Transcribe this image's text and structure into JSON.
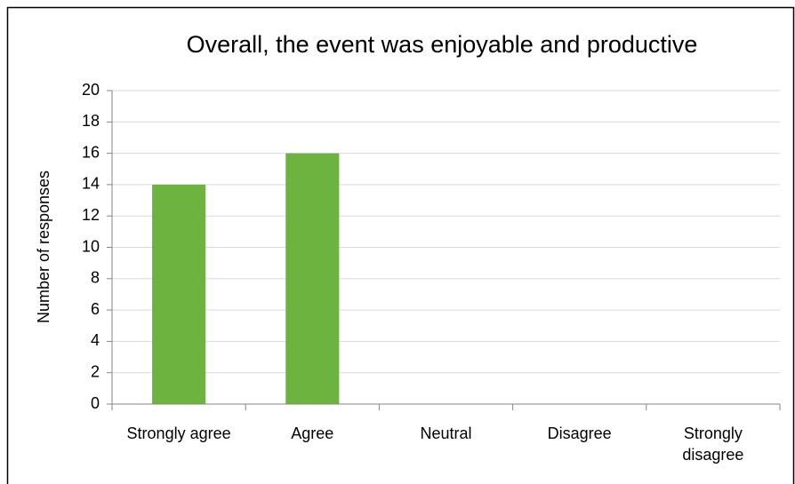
{
  "chart_data": {
    "type": "bar",
    "title": "Overall, the event was enjoyable and productive",
    "y_label": "Number of responses",
    "categories": [
      "Strongly agree",
      "Agree",
      "Neutral",
      "Disagree",
      "Strongly disagree"
    ],
    "values": [
      14,
      16,
      0,
      0,
      0
    ],
    "color": "#6db33f",
    "ylim": [
      0,
      20
    ],
    "yticks": [
      0,
      2,
      4,
      6,
      8,
      10,
      12,
      14,
      16,
      18,
      20
    ],
    "grid": true
  }
}
